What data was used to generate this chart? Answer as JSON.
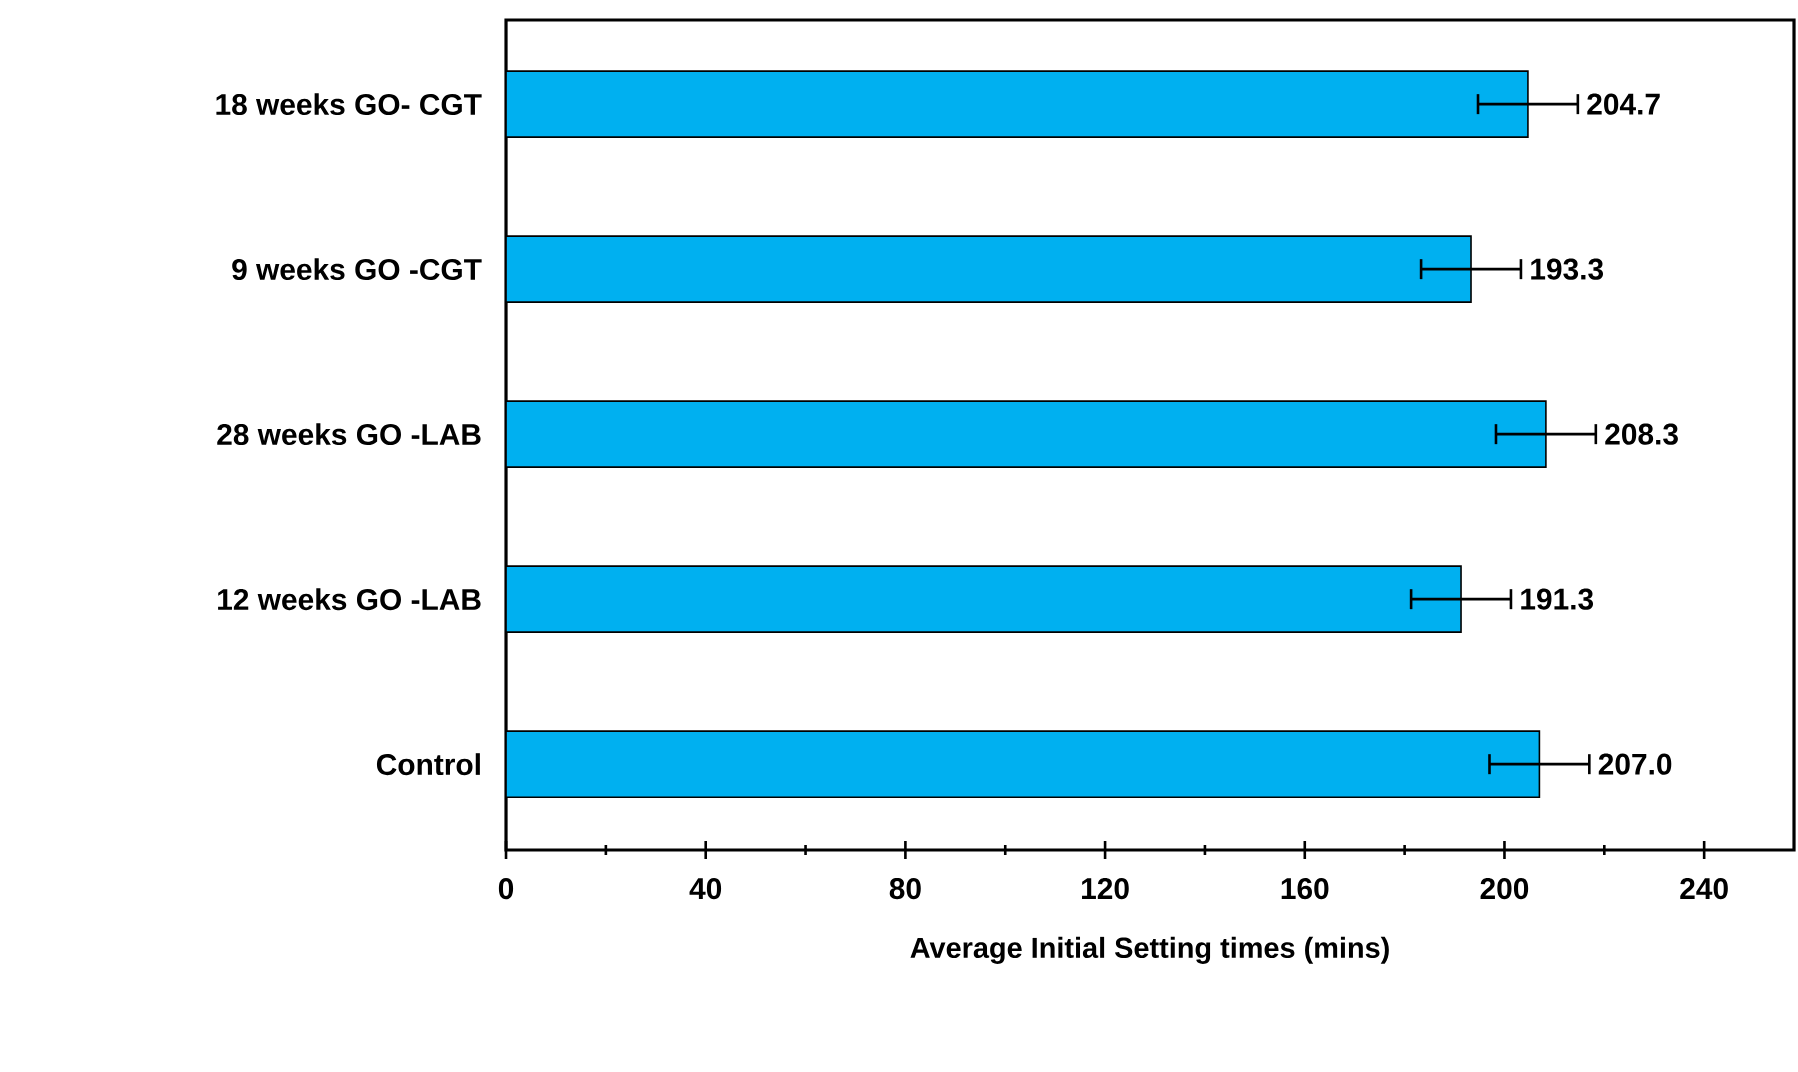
{
  "chart_data": {
    "type": "bar",
    "orientation": "horizontal",
    "xlabel": "Average Initial Setting times (mins)",
    "categories": [
      "18 weeks GO- CGT",
      "9 weeks GO -CGT",
      "28 weeks GO -LAB",
      "12 weeks GO -LAB",
      "Control"
    ],
    "values": [
      204.7,
      193.3,
      208.3,
      191.3,
      207.0
    ],
    "errors": [
      10,
      10,
      10,
      10,
      10
    ],
    "value_labels": [
      "204.7",
      "193.3",
      "208.3",
      "191.3",
      "207.0"
    ],
    "color": "#00b0f0",
    "xlim": [
      0,
      258
    ],
    "xticks": [
      0,
      {
        "value": 20,
        "label": null
      },
      40,
      {
        "value": 60,
        "label": null
      },
      80,
      {
        "value": 100,
        "label": null
      },
      120,
      {
        "value": 140,
        "label": null
      },
      160,
      {
        "value": 180,
        "label": null
      },
      200,
      {
        "value": 220,
        "label": null
      },
      240
    ],
    "grid": false
  }
}
